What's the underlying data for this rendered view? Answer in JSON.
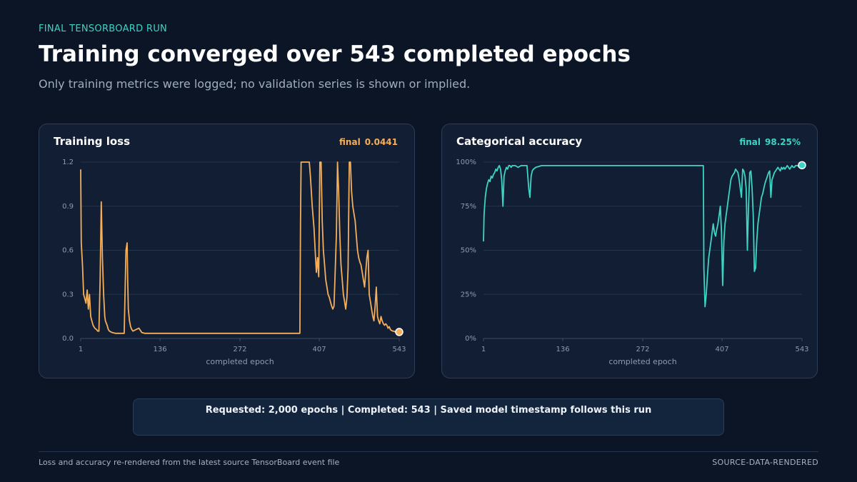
{
  "header": {
    "eyebrow": "FINAL TENSORBOARD RUN",
    "title": "Training converged over 543 completed epochs",
    "subtitle": "Only training metrics were logged; no validation series is shown or implied."
  },
  "cards": {
    "loss": {
      "title": "Training loss",
      "final_label": "final",
      "final_value": "0.0441"
    },
    "accuracy": {
      "title": "Categorical accuracy",
      "final_label": "final",
      "final_value": "98.25%"
    }
  },
  "summary": "Requested: 2,000 epochs  |  Completed: 543  |  Saved model timestamp follows this run",
  "footer": {
    "note": "Loss and accuracy re-rendered from the latest source TensorBoard event file",
    "tag": "SOURCE-DATA-RENDERED"
  },
  "colors": {
    "loss": "#f5ae59",
    "accuracy": "#3ed4c4",
    "grid": "#24344d",
    "axis": "#3a4c66"
  },
  "chart_data": [
    {
      "type": "line",
      "title": "Training loss",
      "xlabel": "completed epoch",
      "ylabel": "",
      "xlim": [
        1,
        543
      ],
      "ylim": [
        0,
        1.2
      ],
      "x_ticks": [
        1,
        136,
        272,
        407,
        543
      ],
      "y_ticks": [
        0,
        0.3,
        0.6,
        0.9,
        1.2
      ],
      "y_tick_labels": [
        "0.0",
        "0.3",
        "0.6",
        "0.9",
        "1.2"
      ],
      "grid": true,
      "series": [
        {
          "x": [
            1,
            2,
            4,
            6,
            8,
            10,
            12,
            14,
            16,
            18,
            20,
            22,
            25,
            28,
            30,
            32,
            34,
            36,
            38,
            40,
            42,
            43,
            44,
            46,
            48,
            50,
            52,
            55,
            60,
            65,
            70,
            75,
            78,
            80,
            81,
            82,
            84,
            86,
            88,
            90,
            95,
            100,
            105,
            110,
            130,
            160,
            200,
            240,
            280,
            320,
            350,
            370,
            374,
            375,
            376,
            380,
            385,
            388,
            390,
            392,
            395,
            398,
            400,
            402,
            404,
            406,
            408,
            410,
            412,
            414,
            416,
            418,
            420,
            422,
            424,
            426,
            428,
            430,
            432,
            434,
            436,
            438,
            440,
            442,
            444,
            446,
            448,
            450,
            452,
            454,
            456,
            458,
            460,
            462,
            464,
            466,
            468,
            470,
            472,
            474,
            476,
            478,
            480,
            482,
            484,
            486,
            488,
            490,
            492,
            494,
            496,
            498,
            500,
            502,
            504,
            506,
            508,
            510,
            512,
            514,
            516,
            518,
            520,
            522,
            524,
            526,
            528,
            530,
            532,
            534,
            536,
            538,
            540,
            543
          ],
          "y": [
            1.15,
            0.65,
            0.5,
            0.3,
            0.27,
            0.24,
            0.33,
            0.2,
            0.3,
            0.15,
            0.12,
            0.09,
            0.07,
            0.06,
            0.05,
            0.05,
            0.4,
            0.93,
            0.55,
            0.3,
            0.15,
            0.12,
            0.11,
            0.09,
            0.06,
            0.05,
            0.045,
            0.04,
            0.035,
            0.035,
            0.035,
            0.035,
            0.6,
            0.65,
            0.4,
            0.2,
            0.12,
            0.08,
            0.06,
            0.05,
            0.06,
            0.07,
            0.04,
            0.035,
            0.035,
            0.035,
            0.035,
            0.035,
            0.035,
            0.035,
            0.035,
            0.035,
            0.035,
            0.8,
            1.2,
            1.2,
            1.2,
            1.2,
            1.2,
            1.1,
            0.9,
            0.75,
            0.6,
            0.45,
            0.55,
            0.42,
            1.2,
            1.2,
            0.8,
            0.6,
            0.5,
            0.4,
            0.35,
            0.3,
            0.28,
            0.25,
            0.22,
            0.2,
            0.22,
            0.45,
            0.7,
            1.2,
            1.0,
            0.7,
            0.5,
            0.4,
            0.3,
            0.25,
            0.2,
            0.28,
            0.48,
            1.2,
            1.2,
            1.0,
            0.9,
            0.85,
            0.8,
            0.7,
            0.6,
            0.55,
            0.52,
            0.5,
            0.45,
            0.4,
            0.35,
            0.45,
            0.55,
            0.6,
            0.3,
            0.25,
            0.2,
            0.15,
            0.12,
            0.22,
            0.35,
            0.15,
            0.12,
            0.1,
            0.15,
            0.12,
            0.1,
            0.09,
            0.1,
            0.09,
            0.07,
            0.08,
            0.06,
            0.055,
            0.05,
            0.05,
            0.045,
            0.045,
            0.045,
            0.0441
          ]
        }
      ]
    },
    {
      "type": "line",
      "title": "Categorical accuracy",
      "xlabel": "completed epoch",
      "ylabel": "",
      "xlim": [
        1,
        543
      ],
      "ylim": [
        0,
        100
      ],
      "x_ticks": [
        1,
        136,
        272,
        407,
        543
      ],
      "y_ticks": [
        0,
        25,
        50,
        75,
        100
      ],
      "y_tick_labels": [
        "0%",
        "25%",
        "50%",
        "75%",
        "100%"
      ],
      "grid": true,
      "series": [
        {
          "x": [
            1,
            2,
            3,
            4,
            6,
            8,
            10,
            12,
            14,
            16,
            18,
            20,
            22,
            24,
            26,
            28,
            30,
            32,
            34,
            36,
            38,
            40,
            42,
            44,
            46,
            48,
            50,
            55,
            60,
            65,
            70,
            75,
            78,
            80,
            82,
            84,
            86,
            90,
            100,
            120,
            150,
            180,
            200,
            250,
            300,
            350,
            370,
            374,
            375,
            376,
            378,
            380,
            382,
            384,
            386,
            388,
            390,
            392,
            394,
            396,
            398,
            400,
            402,
            404,
            406,
            408,
            410,
            412,
            414,
            416,
            418,
            420,
            422,
            424,
            426,
            428,
            430,
            432,
            434,
            436,
            438,
            440,
            442,
            444,
            446,
            448,
            450,
            452,
            454,
            456,
            458,
            460,
            462,
            464,
            466,
            468,
            470,
            472,
            474,
            476,
            478,
            480,
            482,
            484,
            486,
            488,
            490,
            492,
            494,
            496,
            498,
            500,
            502,
            504,
            506,
            508,
            510,
            512,
            514,
            516,
            518,
            520,
            522,
            524,
            526,
            528,
            530,
            532,
            534,
            536,
            538,
            540,
            543
          ],
          "y": [
            55,
            70,
            75,
            80,
            85,
            88,
            90,
            89,
            92,
            91,
            93,
            94,
            96,
            95,
            97,
            98,
            96,
            90,
            75,
            92,
            95,
            97,
            96,
            98,
            98,
            97,
            98,
            98,
            97,
            98,
            98,
            98,
            85,
            80,
            92,
            95,
            96,
            97,
            98,
            98,
            98,
            98,
            98,
            98,
            98,
            98,
            98,
            98,
            98,
            40,
            18,
            25,
            35,
            45,
            50,
            55,
            60,
            65,
            60,
            58,
            62,
            65,
            70,
            75,
            60,
            30,
            55,
            65,
            70,
            75,
            80,
            85,
            90,
            92,
            93,
            94,
            96,
            95,
            94,
            90,
            85,
            80,
            96,
            95,
            92,
            85,
            50,
            75,
            94,
            95,
            85,
            70,
            38,
            40,
            55,
            65,
            70,
            75,
            80,
            82,
            85,
            88,
            90,
            92,
            94,
            95,
            80,
            90,
            92,
            94,
            95,
            96,
            97,
            96,
            95,
            97,
            96,
            97,
            96,
            97,
            98,
            97,
            96,
            97,
            98,
            97,
            97,
            98,
            98,
            98,
            97,
            98,
            98.25
          ]
        }
      ]
    }
  ]
}
